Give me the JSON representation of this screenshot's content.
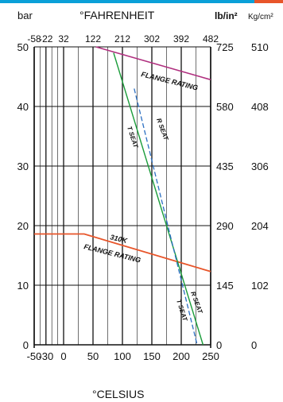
{
  "colors": {
    "top_bar": "#0aa0d8",
    "top_bar_accent": "#e8552a",
    "grid": "#111111",
    "flange_rating_top": "#b0307f",
    "flange_rating_bottom": "#e8552a",
    "t_seat": "#1a9c3a",
    "r_seat": "#2b6fc2"
  },
  "chart_data": {
    "type": "line",
    "units": {
      "left": "bar",
      "top": "°FAHRENHEIT",
      "right_inner": "lb/in²",
      "right_outer": "Kg/cm²",
      "bottom": "°CELSIUS"
    },
    "xlim": [
      -50,
      250
    ],
    "ylim": [
      0,
      50
    ],
    "x_ticks_bottom": [
      "-50",
      "-30",
      "0",
      "50",
      "100",
      "150",
      "200",
      "250"
    ],
    "x_ticks_top": [
      "-58",
      "-22",
      "32",
      "122",
      "212",
      "302",
      "392",
      "482"
    ],
    "y_ticks_left": [
      "0",
      "10",
      "20",
      "30",
      "40",
      "50"
    ],
    "y_ticks_right_inner": [
      "0",
      "145",
      "290",
      "435",
      "580",
      "725"
    ],
    "y_ticks_right_outer": [
      "0",
      "102",
      "204",
      "306",
      "408",
      "510"
    ],
    "series": [
      {
        "key": "flange_top",
        "x": [
          55,
          250
        ],
        "y": [
          50,
          44.5
        ]
      },
      {
        "key": "flange_bottom",
        "x": [
          -50,
          35,
          250
        ],
        "y": [
          18.6,
          18.6,
          12.3
        ]
      },
      {
        "key": "t_seat",
        "x": [
          85,
          237
        ],
        "y": [
          49,
          0
        ]
      },
      {
        "key": "r_seat",
        "x": [
          120,
          227
        ],
        "y": [
          43,
          0
        ]
      }
    ],
    "annotations": {
      "flange_rating_top": "FLANGE RATING",
      "r_seat_upper": "R SEAT",
      "t_seat_upper": "T SEAT",
      "class_310k": "310K",
      "flange_rating_bottom": "FLANGE RATING",
      "r_seat_lower": "R SEAT",
      "t_seat_lower": "T SEAT"
    }
  }
}
